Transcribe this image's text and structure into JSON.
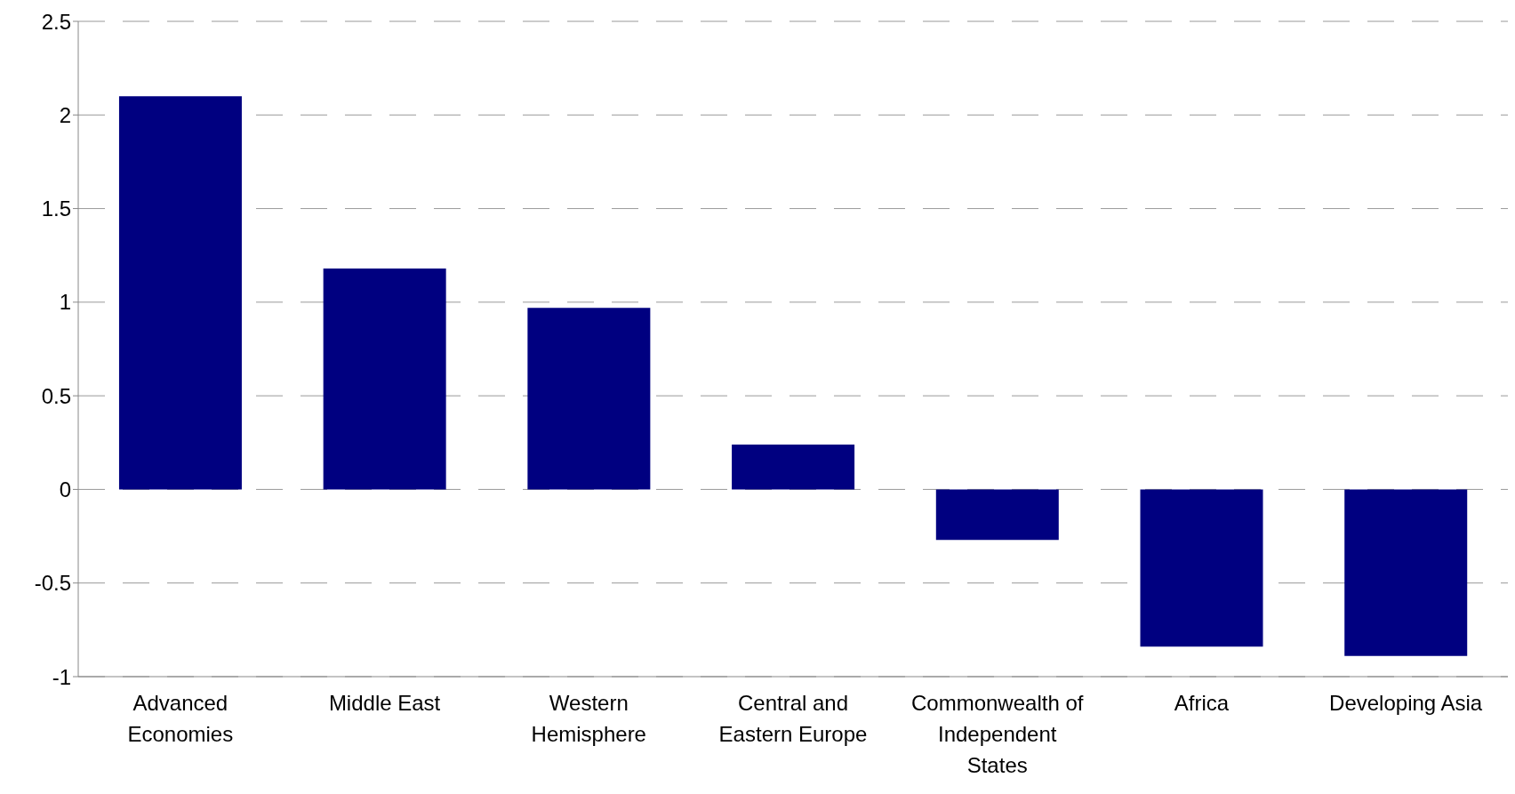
{
  "chart_data": {
    "type": "bar",
    "categories": [
      "Advanced Economies",
      "Middle East",
      "Western Hemisphere",
      "Central and Eastern Europe",
      "Commonwealth of Independent States",
      "Africa",
      "Developing Asia"
    ],
    "values": [
      2.1,
      1.18,
      0.97,
      0.24,
      -0.27,
      -0.84,
      -0.89
    ],
    "color": "#000080",
    "ylim": [
      -1,
      2.5
    ],
    "yticks": [
      -1,
      -0.5,
      0,
      0.5,
      1,
      1.5,
      2,
      2.5
    ],
    "grid": "y"
  }
}
